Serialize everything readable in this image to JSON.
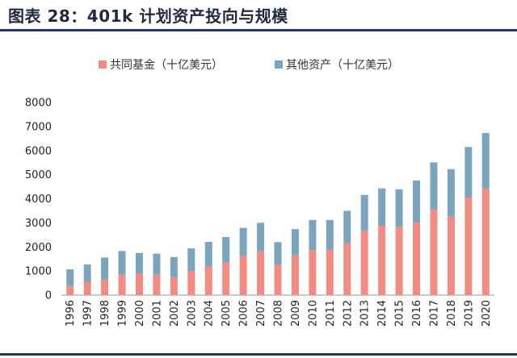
{
  "header": {
    "title": "图表 28：401k 计划资产投向与规模"
  },
  "chart_data": {
    "type": "bar",
    "stacked": true,
    "title": "",
    "xlabel": "",
    "ylabel": "",
    "ylim": [
      0,
      8000
    ],
    "yticks": [
      0,
      1000,
      2000,
      3000,
      4000,
      5000,
      6000,
      7000,
      8000
    ],
    "grid": false,
    "legend": "top-center",
    "categories": [
      "1996",
      "1997",
      "1998",
      "1999",
      "2000",
      "2001",
      "2002",
      "2003",
      "2004",
      "2005",
      "2006",
      "2007",
      "2008",
      "2009",
      "2010",
      "2011",
      "2012",
      "2013",
      "2014",
      "2015",
      "2016",
      "2017",
      "2018",
      "2019",
      "2020"
    ],
    "series": [
      {
        "name": "共同基金（十亿美元）",
        "color": "#f28b82",
        "values": [
          380,
          550,
          650,
          850,
          880,
          850,
          750,
          1000,
          1200,
          1350,
          1620,
          1820,
          1270,
          1650,
          1870,
          1880,
          2150,
          2680,
          2880,
          2840,
          3010,
          3550,
          3260,
          4050,
          4430
        ]
      },
      {
        "name": "其他资产（十亿美元）",
        "color": "#7ba4bf",
        "values": [
          690,
          720,
          910,
          980,
          870,
          870,
          830,
          940,
          1010,
          1060,
          1170,
          1180,
          930,
          1090,
          1250,
          1240,
          1350,
          1480,
          1550,
          1550,
          1750,
          1960,
          1970,
          2100,
          2300
        ]
      }
    ]
  }
}
